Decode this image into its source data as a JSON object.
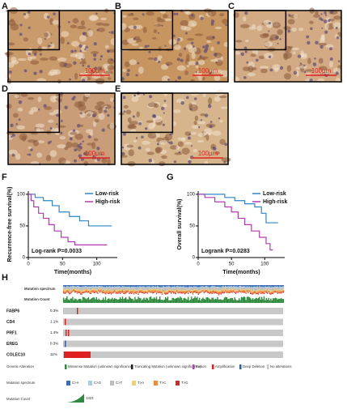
{
  "panels": [
    "A",
    "B",
    "C",
    "D",
    "E",
    "F",
    "G",
    "H"
  ],
  "scale_bar": "100μm",
  "chart_data": [
    {
      "type": "line",
      "y_label": "Recurrence-free survival(%)",
      "x_label": "Time(months)",
      "annotation": "Log-rank P=0.0033",
      "xlim": [
        0,
        130
      ],
      "xticks": [
        0,
        50,
        100
      ],
      "ylim": [
        0,
        105
      ],
      "yticks": [
        0,
        50,
        100
      ],
      "legend": "upper right",
      "series": [
        {
          "name": "Low-risk",
          "color": "#2f86c8",
          "x": [
            0,
            10,
            10,
            22,
            22,
            35,
            35,
            45,
            45,
            60,
            60,
            75,
            75,
            88,
            88,
            122
          ],
          "values": [
            100,
            100,
            95,
            95,
            90,
            90,
            82,
            82,
            72,
            72,
            65,
            65,
            58,
            58,
            50,
            50
          ]
        },
        {
          "name": "High-risk",
          "color": "#b23ab0",
          "x": [
            0,
            4,
            4,
            8,
            8,
            15,
            15,
            22,
            22,
            30,
            30,
            38,
            38,
            48,
            48,
            58,
            58,
            68,
            68,
            115
          ],
          "values": [
            100,
            100,
            90,
            90,
            80,
            80,
            70,
            70,
            62,
            62,
            52,
            52,
            42,
            42,
            32,
            32,
            25,
            25,
            20,
            20
          ]
        }
      ]
    },
    {
      "type": "line",
      "y_label": "Overall survival(%)",
      "x_label": "Time(months)",
      "annotation": "Logrank P=0.0283",
      "xlim": [
        0,
        130
      ],
      "xticks": [
        0,
        50,
        100
      ],
      "ylim": [
        0,
        105
      ],
      "yticks": [
        0,
        50,
        100
      ],
      "legend": "upper right",
      "series": [
        {
          "name": "Low-risk",
          "color": "#2f86c8",
          "x": [
            0,
            40,
            40,
            55,
            55,
            70,
            70,
            85,
            85,
            95,
            95,
            102,
            102,
            120
          ],
          "values": [
            100,
            100,
            95,
            95,
            90,
            90,
            85,
            85,
            80,
            80,
            70,
            70,
            55,
            55
          ]
        },
        {
          "name": "High-risk",
          "color": "#b23ab0",
          "x": [
            0,
            10,
            10,
            25,
            25,
            40,
            40,
            50,
            50,
            60,
            60,
            70,
            70,
            80,
            80,
            92,
            92,
            102,
            102,
            108,
            108,
            112
          ],
          "values": [
            100,
            100,
            95,
            95,
            88,
            88,
            80,
            80,
            72,
            72,
            62,
            62,
            52,
            52,
            42,
            42,
            32,
            32,
            22,
            22,
            12,
            12
          ]
        }
      ]
    }
  ],
  "oncoprint": {
    "rows": [
      "Mutation spectrum",
      "Mutation Count"
    ],
    "genes": [
      {
        "name": "FABP6",
        "pct": "0.3%"
      },
      {
        "name": "CD4",
        "pct": "1.1%"
      },
      {
        "name": "PRF1",
        "pct": "1.4%"
      },
      {
        "name": "EREG",
        "pct": "0.3%"
      },
      {
        "name": "COLEC10",
        "pct": "11%"
      }
    ],
    "legend_title": "Genetic Alteration",
    "legend": [
      "Missense Mutation (unknown significance)",
      "Truncating Mutation (unknown significance)",
      "Fusion",
      "Amplification",
      "Deep Deletion",
      "No alterations"
    ],
    "spectrum_title": "Mutation spectrum",
    "spectrum": [
      "C>A",
      "C>G",
      "C>T",
      "T>A",
      "T>C",
      "T>G"
    ],
    "count_title": "Mutation Count",
    "count_max": "1323"
  }
}
